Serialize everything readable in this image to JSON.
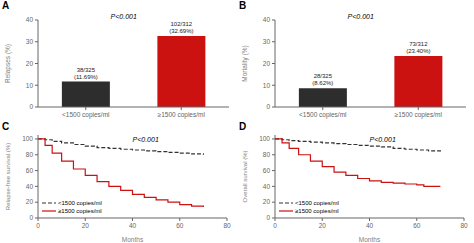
{
  "chart_data": [
    {
      "type": "bar",
      "title": "A",
      "annotations": [
        "P<0.001"
      ],
      "categories": [
        "<1500 copies/ml",
        "≥1500 copies/ml"
      ],
      "values": [
        11.69,
        32.69
      ],
      "value_labels": [
        "38/325\n(11.69%)",
        "102/312\n(32.69%)"
      ],
      "colors": [
        "#2d2d2d",
        "#cc1111"
      ],
      "ylabel": "Relapses (%)",
      "ylim": [
        0,
        40
      ],
      "yticks": [
        0,
        10,
        20,
        30,
        40
      ]
    },
    {
      "type": "bar",
      "title": "B",
      "annotations": [
        "P<0.001"
      ],
      "categories": [
        "<1500 copies/ml",
        "≥1500 copies/ml"
      ],
      "values": [
        8.62,
        23.4
      ],
      "value_labels": [
        "28/325\n(8.62%)",
        "73/312\n(23.40%)"
      ],
      "colors": [
        "#2d2d2d",
        "#cc1111"
      ],
      "ylabel": "Mortality (%)",
      "ylim": [
        0,
        40
      ],
      "yticks": [
        0,
        10,
        20,
        30,
        40
      ]
    },
    {
      "type": "step",
      "title": "C",
      "annotations": [
        "P<0.001"
      ],
      "xlabel": "Months",
      "ylabel": "Relapse-free survival (%)",
      "xlim": [
        0,
        80
      ],
      "xticks": [
        0,
        20,
        40,
        60,
        80
      ],
      "ylim": [
        0,
        105
      ],
      "yticks": [
        0,
        20,
        40,
        60,
        80,
        100
      ],
      "legend": "lower left",
      "series": [
        {
          "name": "<1500 copies/ml",
          "color": "#333333",
          "line_style": "dashed",
          "x": [
            0,
            3,
            6,
            10,
            15,
            20,
            25,
            30,
            35,
            40,
            45,
            50,
            55,
            60,
            65,
            70
          ],
          "values": [
            100,
            99,
            97,
            95,
            93,
            91,
            89,
            88,
            87,
            86,
            85,
            84,
            83,
            82,
            81,
            80
          ]
        },
        {
          "name": "≥1500 copies/ml",
          "color": "#cc1111",
          "line_style": "solid",
          "x": [
            0,
            3,
            6,
            10,
            15,
            20,
            25,
            30,
            35,
            40,
            45,
            50,
            55,
            60,
            65,
            70
          ],
          "values": [
            100,
            92,
            82,
            72,
            62,
            54,
            46,
            40,
            35,
            30,
            26,
            23,
            20,
            17,
            15,
            14
          ]
        }
      ]
    },
    {
      "type": "step",
      "title": "D",
      "annotations": [
        "P<0.001"
      ],
      "xlabel": "Months",
      "ylabel": "Overall survival (%)",
      "xlim": [
        0,
        80
      ],
      "xticks": [
        0,
        20,
        40,
        60,
        80
      ],
      "ylim": [
        0,
        105
      ],
      "yticks": [
        0,
        20,
        40,
        60,
        80,
        100
      ],
      "legend": "lower left",
      "series": [
        {
          "name": "<1500 copies/ml",
          "color": "#333333",
          "line_style": "dashed",
          "x": [
            0,
            3,
            6,
            10,
            15,
            20,
            25,
            30,
            35,
            40,
            45,
            50,
            55,
            60,
            65,
            70
          ],
          "values": [
            100,
            99,
            98,
            97,
            96,
            95,
            94,
            93,
            92,
            91,
            90,
            88,
            87,
            86,
            85,
            84
          ]
        },
        {
          "name": "≥1500 copies/ml",
          "color": "#cc1111",
          "line_style": "solid",
          "x": [
            0,
            3,
            6,
            10,
            15,
            20,
            25,
            30,
            35,
            40,
            45,
            50,
            55,
            60,
            63,
            65,
            70
          ],
          "values": [
            100,
            95,
            88,
            80,
            72,
            65,
            58,
            54,
            50,
            47,
            45,
            44,
            43,
            42,
            40,
            40,
            40
          ]
        }
      ]
    }
  ]
}
